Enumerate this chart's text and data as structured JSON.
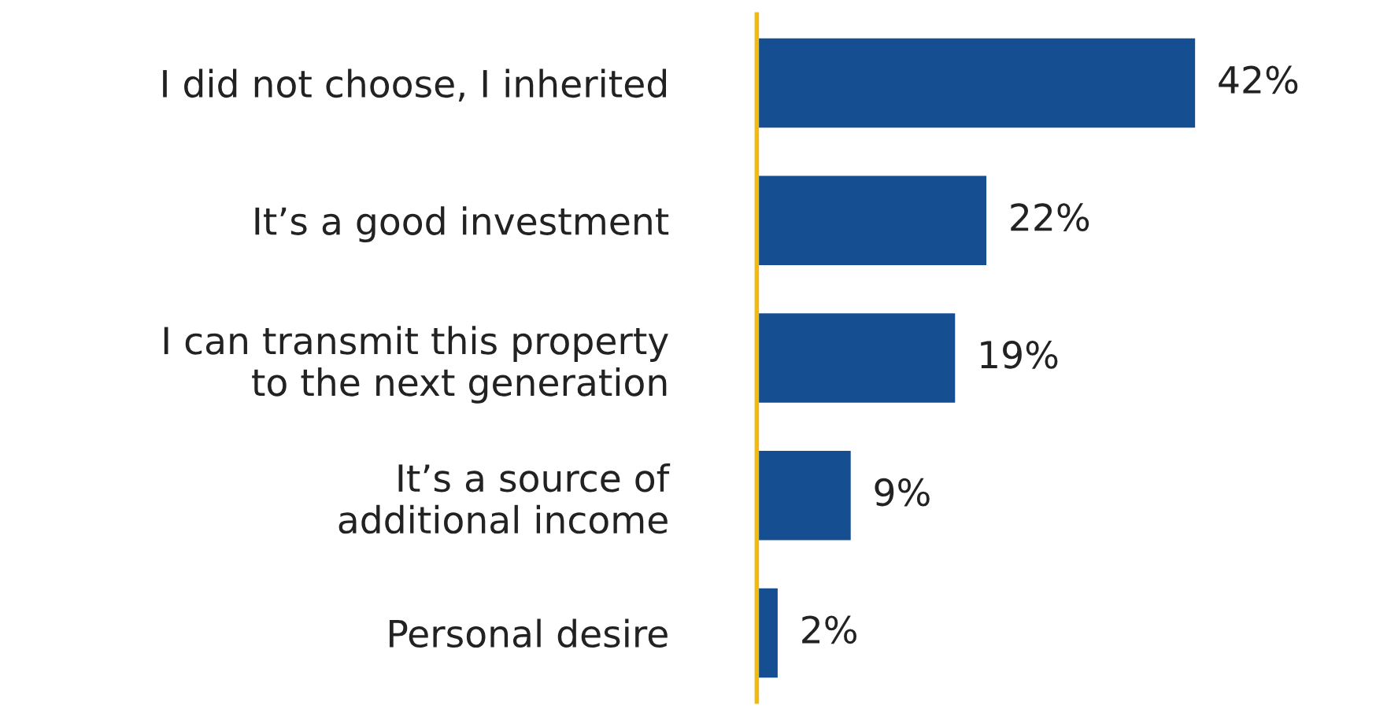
{
  "chart_data": {
    "type": "bar",
    "orientation": "horizontal",
    "categories": [
      "I did not choose, I inherited",
      "It’s a good investment",
      "I can transmit this property\nto the next generation",
      "It’s a source of\nadditional income",
      "Personal desire"
    ],
    "values": [
      42,
      22,
      19,
      9,
      2
    ],
    "color": "#154f91",
    "value_labels": [
      "42%",
      "22%",
      "19%",
      "9%",
      "2%"
    ],
    "tick_labels": "y",
    "grid": false,
    "legend": false
  }
}
